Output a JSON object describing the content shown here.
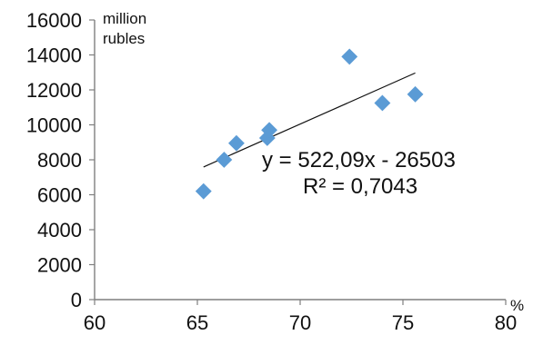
{
  "chart_data": {
    "type": "scatter",
    "y_unit_label_line1": "million",
    "y_unit_label_line2": "rubles",
    "x_unit_label": "%",
    "xlim": [
      60,
      80
    ],
    "ylim": [
      0,
      16000
    ],
    "x_ticks": [
      60,
      65,
      70,
      75,
      80
    ],
    "y_ticks": [
      0,
      2000,
      4000,
      6000,
      8000,
      10000,
      12000,
      14000,
      16000
    ],
    "grid": false,
    "points": [
      {
        "x": 65.3,
        "y": 6200
      },
      {
        "x": 66.3,
        "y": 8000
      },
      {
        "x": 66.9,
        "y": 8950
      },
      {
        "x": 68.4,
        "y": 9250
      },
      {
        "x": 68.5,
        "y": 9700
      },
      {
        "x": 72.4,
        "y": 13900
      },
      {
        "x": 74.0,
        "y": 11250
      },
      {
        "x": 75.6,
        "y": 11750
      }
    ],
    "trendline": {
      "slope": 522.09,
      "intercept": -26503,
      "x_start": 65.3,
      "x_end": 75.6,
      "equation_text": "y = 522,09x - 26503",
      "r2_text": "R² = 0,7043"
    },
    "marker_color": "#5B9BD5",
    "axis_color": "#7f7f7f",
    "trendline_color": "#111111"
  }
}
